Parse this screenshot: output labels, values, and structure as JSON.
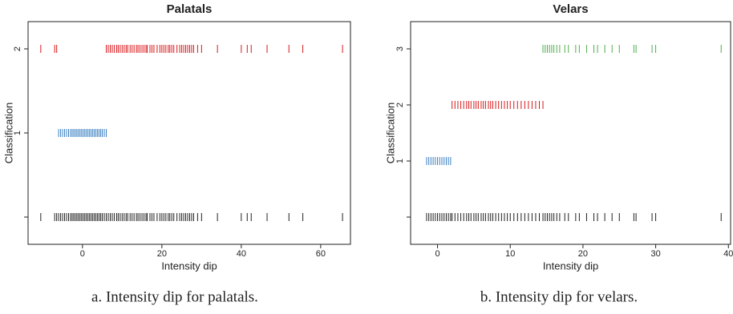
{
  "chart_data": [
    {
      "type": "strip",
      "title": "Palatals",
      "x_label": "Intensity dip",
      "y_label": "Classification",
      "caption": "a. Intensity dip for palatals.",
      "xlim": [
        -13.7,
        67.5
      ],
      "xticks": [
        0,
        20,
        40,
        60
      ],
      "categories": [
        null,
        "1",
        "2"
      ],
      "series": [
        {
          "color": "#222222",
          "values": [
            -10.5,
            -7,
            -6.5,
            -6,
            -5.5,
            -5,
            -4.5,
            -4,
            -3.5,
            -3,
            -2.6,
            -2.2,
            -1.8,
            -1.4,
            -1,
            -0.6,
            -0.2,
            0.2,
            0.6,
            1,
            1.4,
            1.8,
            2.2,
            2.6,
            3,
            3.4,
            3.8,
            4.2,
            4.6,
            5,
            5.5,
            6,
            6.5,
            7,
            7.5,
            8,
            8.6,
            9,
            9.5,
            10,
            10.5,
            11,
            11.4,
            12,
            12.5,
            13,
            13.6,
            14,
            14.5,
            15,
            15.5,
            16,
            16.3,
            17,
            17.5,
            18,
            18.8,
            19.5,
            20,
            20.5,
            21,
            21.6,
            22,
            22.5,
            23,
            23.8,
            24.5,
            25,
            25.5,
            26,
            26.5,
            27,
            27.5,
            28,
            29,
            30,
            34,
            40,
            41.5,
            42.5,
            46.5,
            52,
            55.5,
            65.5
          ]
        },
        {
          "color": "#3a7fc1",
          "values": [
            -6,
            -5.5,
            -5,
            -4.5,
            -4,
            -3.5,
            -3,
            -2.6,
            -2.2,
            -1.8,
            -1.4,
            -1,
            -0.6,
            -0.2,
            0.2,
            0.6,
            1,
            1.4,
            1.8,
            2.2,
            2.6,
            3,
            3.4,
            3.8,
            4.2,
            4.6,
            5,
            5.5,
            6
          ]
        },
        {
          "color": "#d7191c",
          "values": [
            -10.5,
            -7,
            -6.5,
            6,
            6.5,
            7,
            7.5,
            8,
            8.6,
            9,
            9.5,
            10,
            10.5,
            11,
            11.4,
            12,
            12.5,
            13,
            13.6,
            14,
            14.5,
            15,
            15.5,
            16,
            16.3,
            17,
            17.5,
            18,
            18.8,
            19.5,
            20,
            20.5,
            21,
            21.6,
            22,
            22.5,
            23,
            23.8,
            24.5,
            25,
            25.5,
            26,
            26.5,
            27,
            27.5,
            28,
            29,
            30,
            34,
            40,
            41.5,
            42.5,
            46.5,
            52,
            55.5,
            65.5
          ]
        }
      ]
    },
    {
      "type": "strip",
      "title": "Velars",
      "x_label": "Intensity dip",
      "y_label": "Classification",
      "caption": "b. Intensity dip for velars.",
      "xlim": [
        -3.7,
        40.3
      ],
      "xticks": [
        0,
        10,
        20,
        30,
        40
      ],
      "categories": [
        null,
        "1",
        "2",
        "3"
      ],
      "series": [
        {
          "color": "#222222",
          "values": [
            -1.5,
            -1.2,
            -0.9,
            -0.6,
            -0.3,
            0,
            0.3,
            0.6,
            0.9,
            1.2,
            1.5,
            1.8,
            2,
            2.4,
            2.8,
            3.2,
            3.6,
            4,
            4.3,
            4.6,
            5,
            5.3,
            5.6,
            6,
            6.3,
            6.6,
            7,
            7.3,
            7.6,
            8,
            8.4,
            8.8,
            9.2,
            9.6,
            10,
            10.5,
            11,
            11.5,
            12,
            12.5,
            13,
            13.5,
            14,
            14.5,
            14.8,
            15.1,
            15.4,
            15.7,
            16,
            16.4,
            16.8,
            17.5,
            18,
            19,
            19.5,
            20.5,
            21.5,
            22,
            23,
            24,
            25,
            27,
            27.3,
            29.5,
            30,
            39
          ]
        },
        {
          "color": "#3a7fc1",
          "values": [
            -1.5,
            -1.2,
            -0.9,
            -0.6,
            -0.3,
            0,
            0.3,
            0.6,
            0.9,
            1.2,
            1.5,
            1.8
          ]
        },
        {
          "color": "#d7191c",
          "values": [
            2,
            2.4,
            2.8,
            3.2,
            3.6,
            4,
            4.3,
            4.6,
            5,
            5.3,
            5.6,
            6,
            6.3,
            6.6,
            7,
            7.3,
            7.6,
            8,
            8.4,
            8.8,
            9.2,
            9.6,
            10,
            10.5,
            11,
            11.5,
            12,
            12.5,
            13,
            13.5,
            14,
            14.5
          ]
        },
        {
          "color": "#4daf4a",
          "values": [
            14.5,
            14.8,
            15.1,
            15.4,
            15.7,
            16,
            16.4,
            16.8,
            17.5,
            18,
            19,
            19.5,
            20.5,
            21.5,
            22,
            23,
            24,
            25,
            27,
            27.3,
            29.5,
            30,
            39
          ]
        }
      ]
    }
  ]
}
